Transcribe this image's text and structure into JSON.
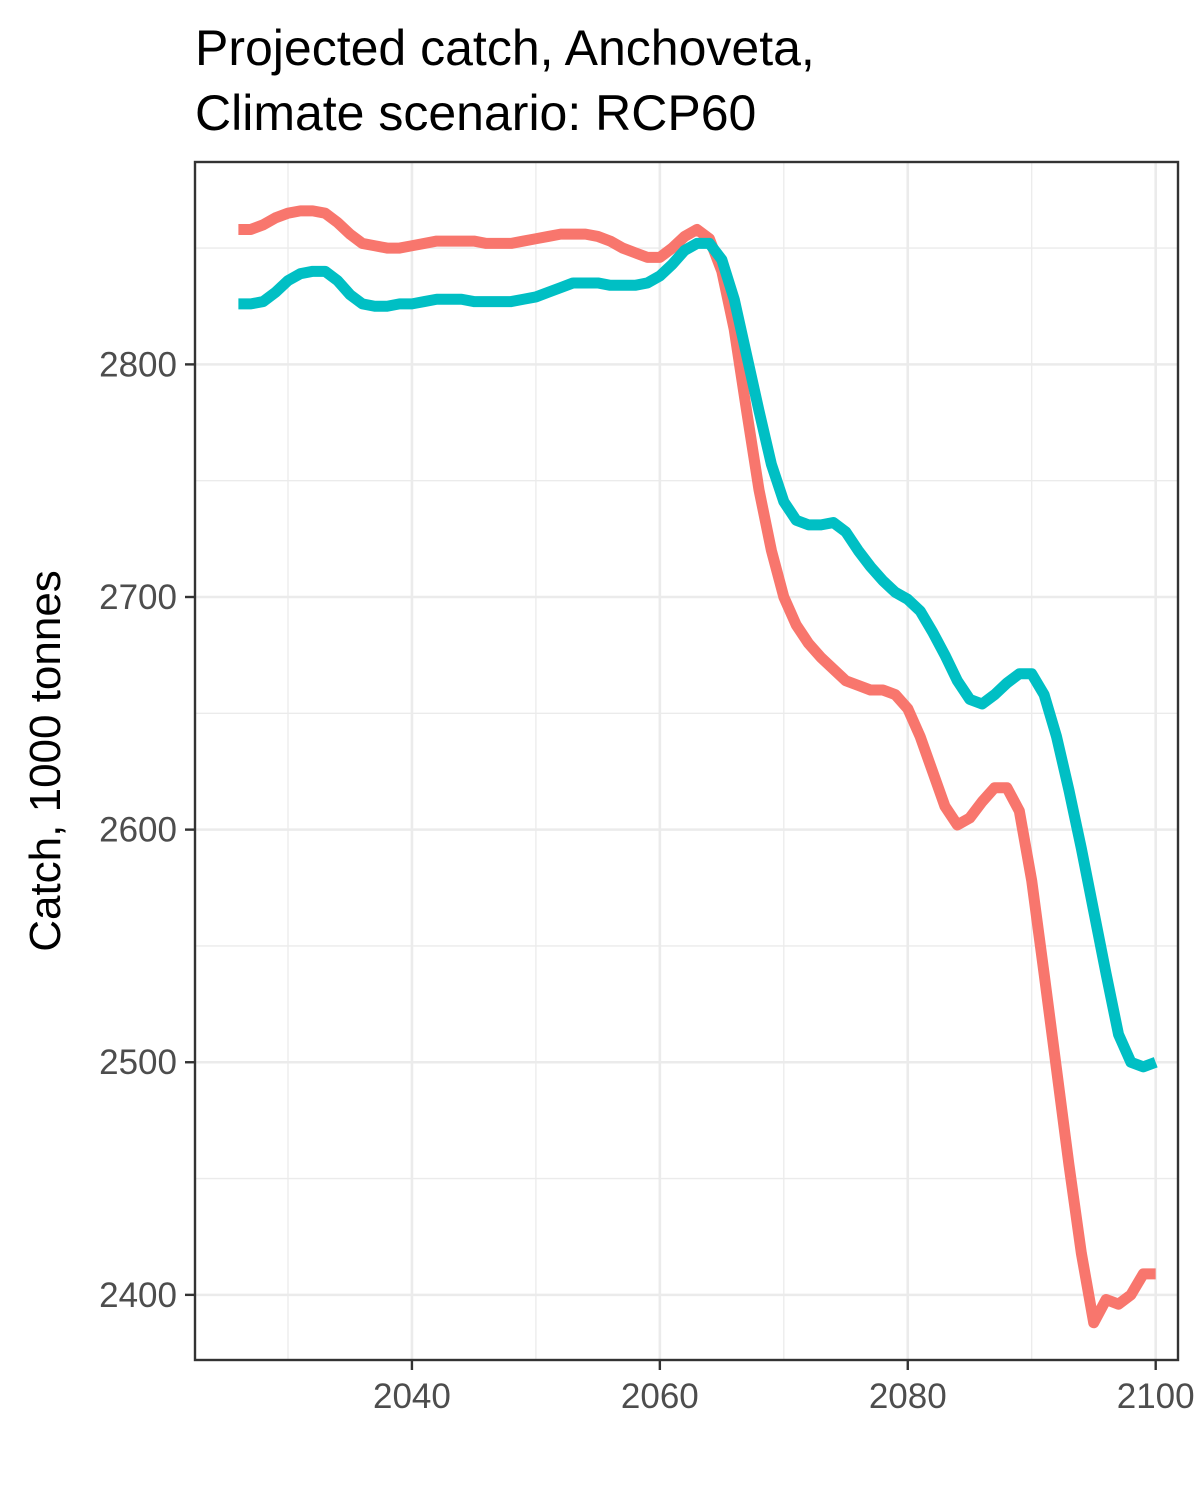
{
  "chart_data": {
    "type": "line",
    "title_line1": "Projected catch, Anchoveta,",
    "title_line2": "Climate scenario: RCP60",
    "xlabel": "",
    "ylabel": "Catch, 1000 tonnes",
    "xlim": [
      2022.5,
      2101.8
    ],
    "ylim": [
      2372,
      2887
    ],
    "x_ticks": [
      2040,
      2060,
      2080,
      2100
    ],
    "y_ticks": [
      2400,
      2500,
      2600,
      2700,
      2800
    ],
    "grid": true,
    "legend": "none",
    "series": [
      {
        "color": "#F8766D",
        "x": [
          2026,
          2027,
          2028,
          2029,
          2030,
          2031,
          2032,
          2033,
          2034,
          2035,
          2036,
          2037,
          2038,
          2039,
          2040,
          2041,
          2042,
          2043,
          2044,
          2045,
          2046,
          2047,
          2048,
          2049,
          2050,
          2051,
          2052,
          2053,
          2054,
          2055,
          2056,
          2057,
          2058,
          2059,
          2060,
          2061,
          2062,
          2063,
          2064,
          2065,
          2066,
          2067,
          2068,
          2069,
          2070,
          2071,
          2072,
          2073,
          2074,
          2075,
          2076,
          2077,
          2078,
          2079,
          2080,
          2081,
          2082,
          2083,
          2084,
          2085,
          2086,
          2087,
          2088,
          2089,
          2090,
          2091,
          2092,
          2093,
          2094,
          2095,
          2096,
          2097,
          2098,
          2099,
          2100
        ],
        "values": [
          2858,
          2858,
          2860,
          2863,
          2865,
          2866,
          2866,
          2865,
          2861,
          2856,
          2852,
          2851,
          2850,
          2850,
          2851,
          2852,
          2853,
          2853,
          2853,
          2853,
          2852,
          2852,
          2852,
          2853,
          2854,
          2855,
          2856,
          2856,
          2856,
          2855,
          2853,
          2850,
          2848,
          2846,
          2846,
          2850,
          2855,
          2858,
          2854,
          2840,
          2815,
          2780,
          2746,
          2720,
          2700,
          2688,
          2680,
          2674,
          2669,
          2664,
          2662,
          2660,
          2660,
          2658,
          2652,
          2640,
          2625,
          2610,
          2602,
          2605,
          2612,
          2618,
          2618,
          2608,
          2578,
          2538,
          2497,
          2456,
          2418,
          2388,
          2398,
          2396,
          2400,
          2409,
          2409
        ]
      },
      {
        "color": "#00BFC4",
        "x": [
          2026,
          2027,
          2028,
          2029,
          2030,
          2031,
          2032,
          2033,
          2034,
          2035,
          2036,
          2037,
          2038,
          2039,
          2040,
          2041,
          2042,
          2043,
          2044,
          2045,
          2046,
          2047,
          2048,
          2049,
          2050,
          2051,
          2052,
          2053,
          2054,
          2055,
          2056,
          2057,
          2058,
          2059,
          2060,
          2061,
          2062,
          2063,
          2064,
          2065,
          2066,
          2067,
          2068,
          2069,
          2070,
          2071,
          2072,
          2073,
          2074,
          2075,
          2076,
          2077,
          2078,
          2079,
          2080,
          2081,
          2082,
          2083,
          2084,
          2085,
          2086,
          2087,
          2088,
          2089,
          2090,
          2091,
          2092,
          2093,
          2094,
          2095,
          2096,
          2097,
          2098,
          2099,
          2100
        ],
        "values": [
          2826,
          2826,
          2827,
          2831,
          2836,
          2839,
          2840,
          2840,
          2836,
          2830,
          2826,
          2825,
          2825,
          2826,
          2826,
          2827,
          2828,
          2828,
          2828,
          2827,
          2827,
          2827,
          2827,
          2828,
          2829,
          2831,
          2833,
          2835,
          2835,
          2835,
          2834,
          2834,
          2834,
          2835,
          2838,
          2843,
          2849,
          2852,
          2852,
          2845,
          2828,
          2804,
          2780,
          2757,
          2741,
          2733,
          2731,
          2731,
          2732,
          2728,
          2720,
          2713,
          2707,
          2702,
          2699,
          2694,
          2685,
          2675,
          2664,
          2656,
          2654,
          2658,
          2663,
          2667,
          2667,
          2658,
          2640,
          2617,
          2592,
          2565,
          2538,
          2512,
          2500,
          2498,
          2500
        ]
      }
    ]
  }
}
